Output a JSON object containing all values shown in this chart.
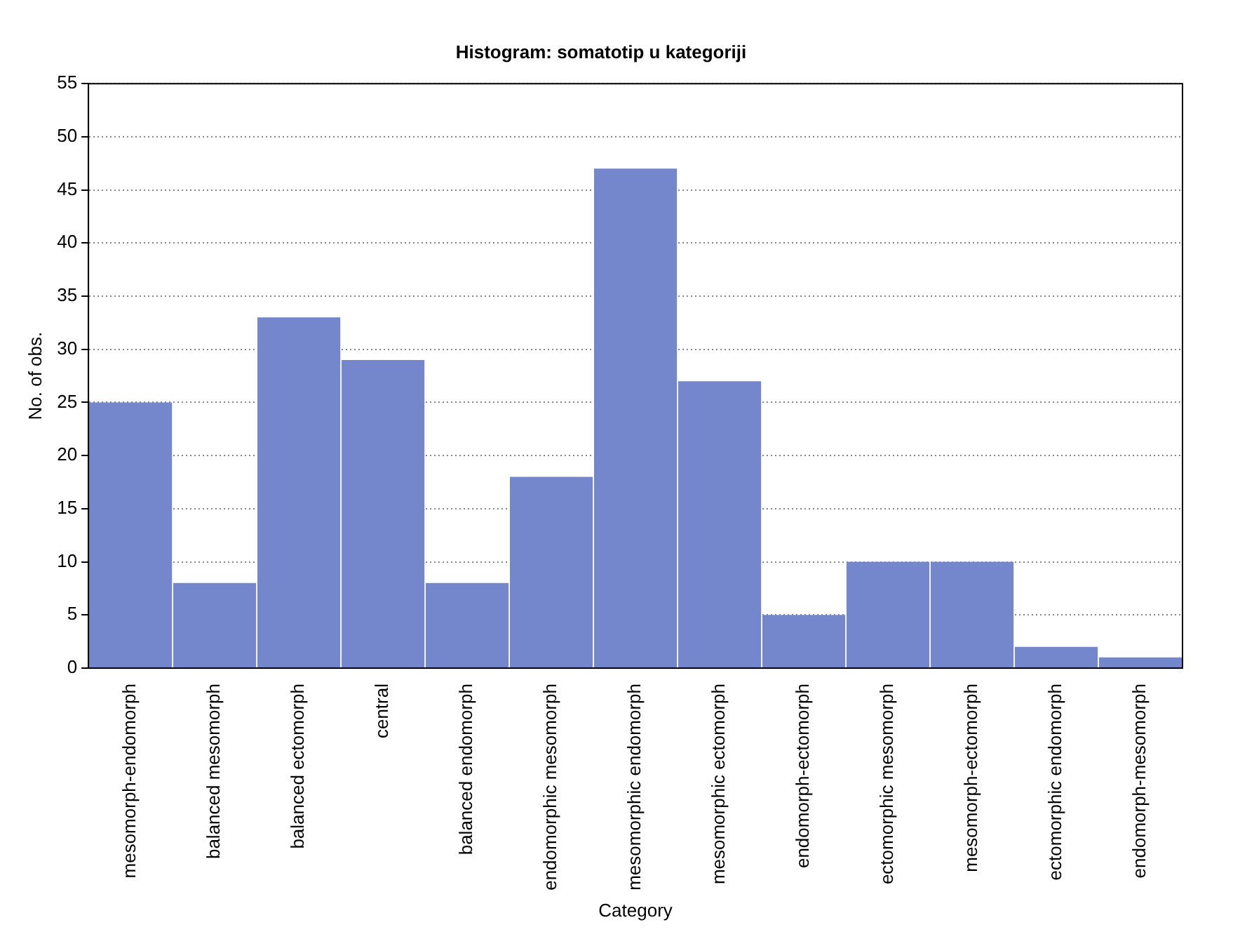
{
  "chart_data": {
    "type": "bar",
    "title": "Histogram: somatotip u kategoriji",
    "xlabel": "Category",
    "ylabel": "No. of obs.",
    "categories": [
      "mesomorph-endomorph",
      "balanced mesomorph",
      "balanced ectomorph",
      "central",
      "balanced endomorph",
      "endomorphic mesomorph",
      "mesomorphic endomorph",
      "mesomorphic ectomorph",
      "endomorph-ectomorph",
      "ectomorphic mesomorph",
      "mesomorph-ectomorph",
      "ectomorphic endomorph",
      "endomorph-mesomorph"
    ],
    "values": [
      25,
      8,
      33,
      29,
      8,
      18,
      47,
      27,
      5,
      10,
      10,
      2,
      1
    ],
    "color": "#7486cc",
    "ylim": [
      0,
      55
    ],
    "yticks": [
      0,
      5,
      10,
      15,
      20,
      25,
      30,
      35,
      40,
      45,
      50,
      55
    ],
    "grid": "y"
  }
}
